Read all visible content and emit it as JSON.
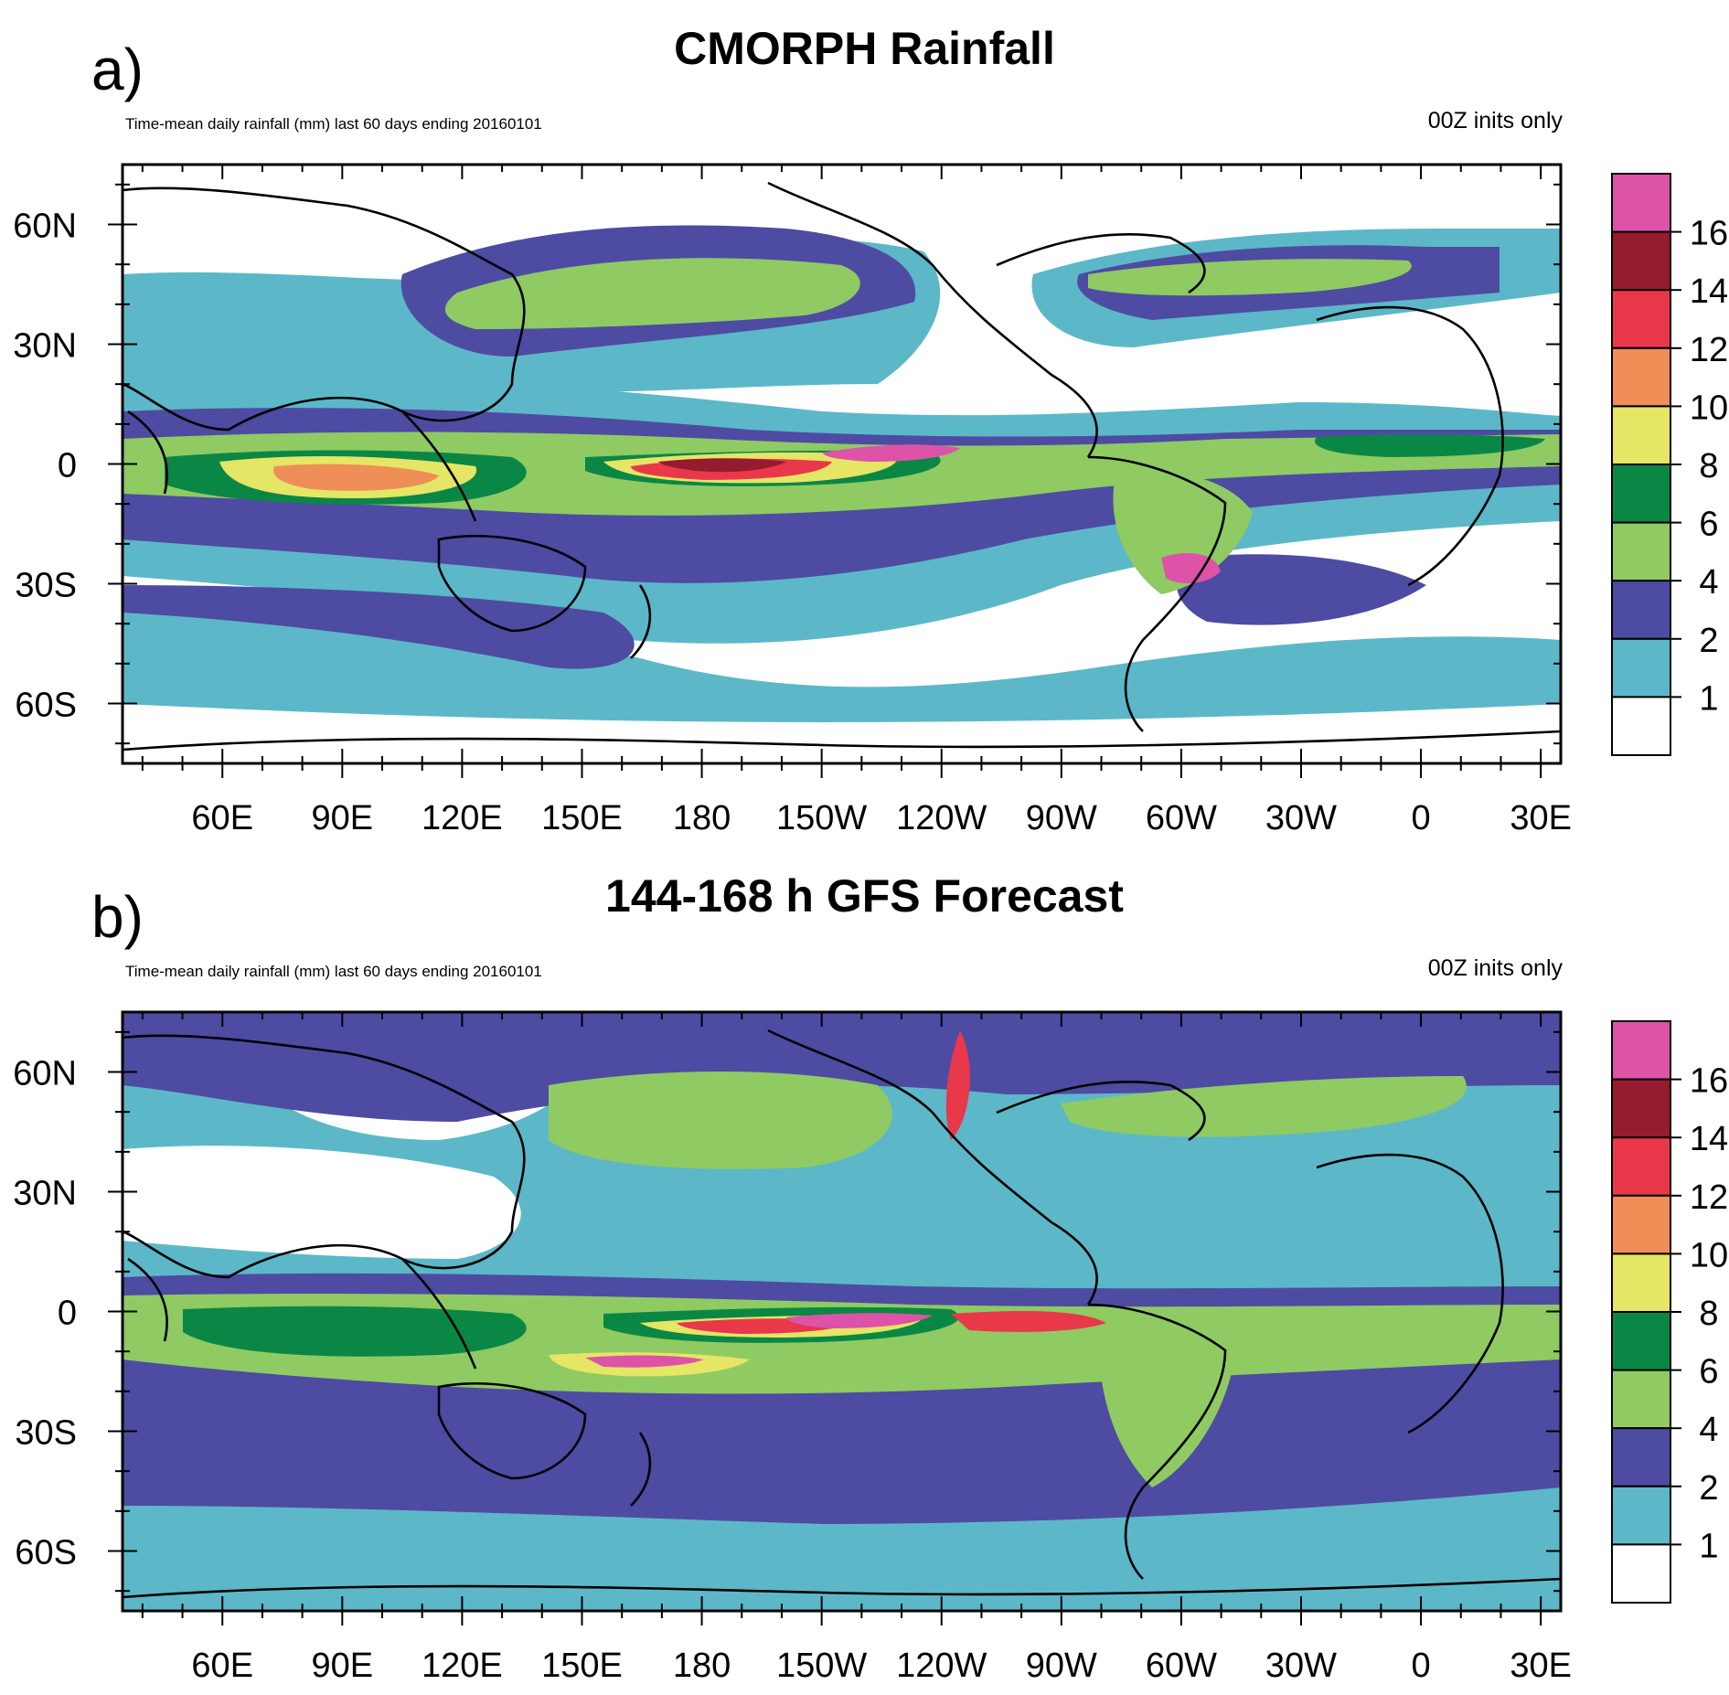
{
  "panels": [
    {
      "letter": "a)",
      "title": "CMORPH Rainfall",
      "subtitle_left": "Time-mean daily rainfall (mm) last 60 days ending 20160101",
      "subtitle_right": "00Z inits only"
    },
    {
      "letter": "b)",
      "title": "144-168 h GFS Forecast",
      "subtitle_left": "Time-mean daily rainfall (mm) last 60 days ending 20160101",
      "subtitle_right": "00Z inits only"
    }
  ],
  "map": {
    "lon_ticks": [
      "60E",
      "90E",
      "120E",
      "150E",
      "180",
      "150W",
      "120W",
      "90W",
      "60W",
      "30W",
      "0",
      "30E"
    ],
    "lat_ticks": [
      "60N",
      "30N",
      "0",
      "30S",
      "60S"
    ],
    "lat_ticks_values": [
      60,
      30,
      0,
      -30,
      -60
    ],
    "lon_ticks_values": [
      60,
      90,
      120,
      150,
      180,
      210,
      240,
      270,
      300,
      330,
      360,
      390
    ]
  },
  "colorbar": {
    "labels": [
      "1",
      "2",
      "4",
      "6",
      "8",
      "10",
      "12",
      "14",
      "16"
    ],
    "colors": [
      "#ffffff",
      "#5cb8c8",
      "#4e4ba3",
      "#8fca63",
      "#0b8745",
      "#e5e566",
      "#ef8f57",
      "#e8384a",
      "#951b2e",
      "#dd53a8"
    ],
    "unit": "mm"
  }
}
